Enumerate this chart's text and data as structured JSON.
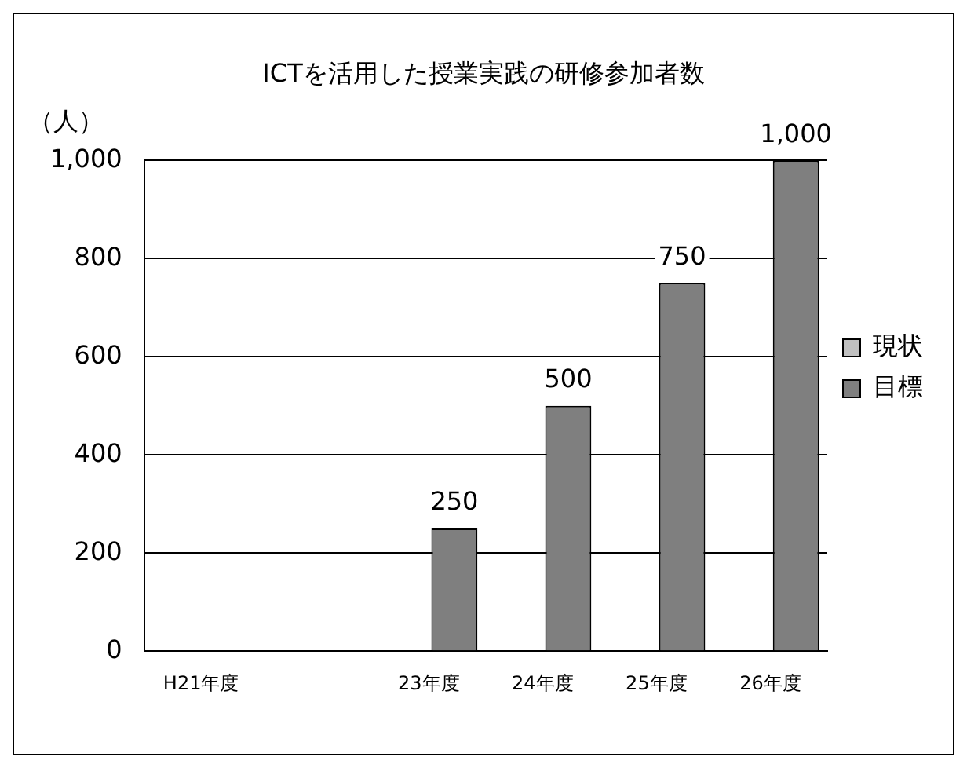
{
  "chart_data": {
    "type": "bar",
    "title": "ICTを活用した授業実践の研修参加者数",
    "ylabel": "（人）",
    "categories": [
      "H21年度",
      null,
      "23年度",
      "24年度",
      "25年度",
      "26年度"
    ],
    "series": [
      {
        "name": "現状",
        "color": "#c0c0c0",
        "values": [
          null,
          null,
          null,
          null,
          null,
          null
        ]
      },
      {
        "name": "目標",
        "color": "#7f7f7f",
        "values": [
          null,
          null,
          250,
          500,
          750,
          1000
        ],
        "value_labels": [
          null,
          null,
          "250",
          "500",
          "750",
          "1,000"
        ]
      }
    ],
    "ylim": [
      0,
      1000
    ],
    "yticks": [
      0,
      {
        "value": 200,
        "label": "200"
      },
      {
        "value": 400,
        "label": "400"
      },
      {
        "value": 600,
        "label": "600"
      },
      {
        "value": 800,
        "label": "800"
      },
      {
        "value": 1000,
        "label": "1,000"
      }
    ],
    "grid": "y",
    "legend": "right"
  }
}
